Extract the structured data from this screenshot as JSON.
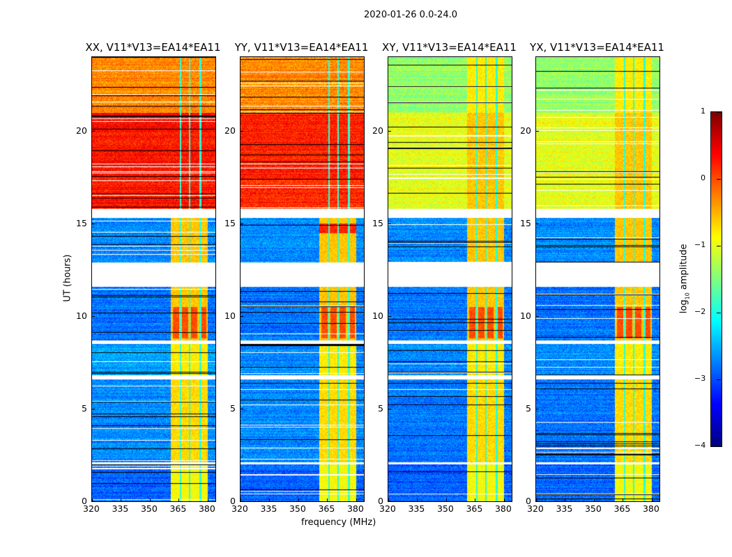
{
  "chart_data": {
    "type": "heatmap",
    "title": "2020-01-26 0.0-24.0",
    "xlabel": "frequency (MHz)",
    "ylabel": "UT (hours)",
    "xlim": [
      320,
      384
    ],
    "ylim": [
      0,
      24
    ],
    "xticks": [
      320,
      335,
      350,
      365,
      380
    ],
    "yticks": [
      0,
      5,
      10,
      15,
      20
    ],
    "colorbar": {
      "label_prefix": "log",
      "label_sub": "10",
      "label_suffix": " amplitude",
      "range": [
        -4,
        1
      ],
      "ticks": [
        1,
        0,
        -1,
        -2,
        -3,
        -4
      ],
      "tick_labels": [
        "1",
        "0",
        "−1",
        "−2",
        "−3",
        "−4"
      ],
      "colormap": "jet"
    },
    "panels": [
      {
        "title": "XX, V11*V13=EA14*EA11",
        "pol": "XX"
      },
      {
        "title": "YY, V11*V13=EA14*EA11",
        "pol": "YY"
      },
      {
        "title": "XY, V11*V13=EA14*EA11",
        "pol": "XY"
      },
      {
        "title": "YX, V11*V13=EA14*EA11",
        "pol": "YX"
      }
    ],
    "flagged_hours": [
      [
        2.0,
        2.1
      ],
      [
        6.6,
        6.8
      ],
      [
        8.5,
        8.7
      ],
      [
        11.6,
        12.9
      ],
      [
        15.3,
        15.8
      ]
    ],
    "rfi_band_mhz": [
      361,
      380
    ],
    "segments": [
      {
        "hours": [
          0,
          2.0
        ],
        "level": {
          "XX": -2.9,
          "YY": -2.9,
          "XY": -2.9,
          "YX": -2.9
        },
        "band_level": -0.9
      },
      {
        "hours": [
          2.1,
          6.6
        ],
        "level": {
          "XX": -2.7,
          "YY": -2.7,
          "XY": -2.8,
          "YX": -2.8
        },
        "band_level": -0.7
      },
      {
        "hours": [
          6.8,
          8.5
        ],
        "level": {
          "XX": -2.6,
          "YY": -2.7,
          "XY": -2.7,
          "YX": -2.7
        },
        "band_level": -0.8
      },
      {
        "hours": [
          8.7,
          11.6
        ],
        "level": {
          "XX": -2.8,
          "YY": -2.8,
          "XY": -2.8,
          "YX": -2.8
        },
        "band_level": -0.6
      },
      {
        "hours": [
          12.9,
          15.3
        ],
        "level": {
          "XX": -2.7,
          "YY": -2.7,
          "XY": -2.7,
          "YX": -2.7
        },
        "band_level": -0.6
      },
      {
        "hours": [
          15.8,
          21.0
        ],
        "level": {
          "XX": 0.3,
          "YY": 0.2,
          "XY": -1.0,
          "YX": -1.0
        },
        "band_level": -0.6
      },
      {
        "hours": [
          21.0,
          24.0
        ],
        "level": {
          "XX": -0.3,
          "YY": -0.3,
          "XY": -1.4,
          "YX": -1.4
        },
        "band_level": -0.8
      }
    ]
  }
}
